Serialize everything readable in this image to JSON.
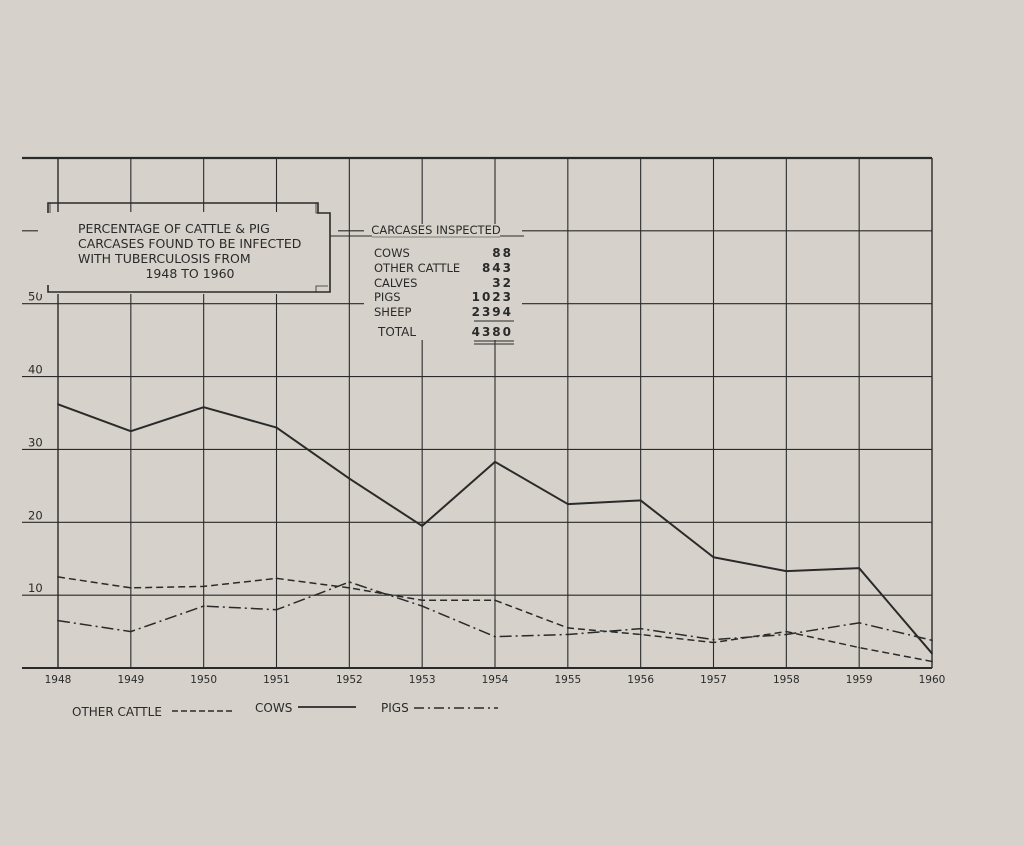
{
  "chart_data": {
    "type": "line",
    "title": "PERCENTAGE OF CATTLE & PIG CARCASES FOUND TO BE INFECTED WITH TUBERCULOSIS FROM 1948 TO 1960",
    "title_lines": [
      "PERCENTAGE OF CATTLE & PIG",
      "CARCASES FOUND TO BE INFECTED",
      "WITH TUBERCULOSIS FROM",
      "1948 TO 1960"
    ],
    "x": [
      1948,
      1949,
      1950,
      1951,
      1952,
      1953,
      1954,
      1955,
      1956,
      1957,
      1958,
      1959,
      1960
    ],
    "x_tick_labels": [
      "1948",
      "1949",
      "1950",
      "1951",
      "1952",
      "1953",
      "1954",
      "1955",
      "1956",
      "1957",
      "1958",
      "1959",
      "1960"
    ],
    "y_ticks": [
      10,
      20,
      30,
      40,
      50
    ],
    "y_tick_labels": [
      "10",
      "20",
      "30",
      "40",
      "50"
    ],
    "ylim": [
      0,
      70
    ],
    "xlim": [
      1948,
      1960
    ],
    "grid": true,
    "series": [
      {
        "name": "COWS",
        "style": "solid",
        "values": [
          36.2,
          32.5,
          35.8,
          33.0,
          26.0,
          19.5,
          28.3,
          22.5,
          23.0,
          15.2,
          13.3,
          13.7,
          2.0
        ]
      },
      {
        "name": "OTHER CATTLE",
        "style": "dashed",
        "values": [
          12.5,
          11.0,
          11.2,
          12.3,
          11.0,
          9.3,
          9.3,
          5.5,
          4.6,
          3.5,
          5.0,
          2.8,
          0.9
        ]
      },
      {
        "name": "PIGS",
        "style": "dashdot",
        "values": [
          6.5,
          5.0,
          8.5,
          8.0,
          11.8,
          8.5,
          4.3,
          4.6,
          5.4,
          3.9,
          4.6,
          6.2,
          3.8
        ]
      }
    ],
    "legend": {
      "placement": "bottom-left",
      "items": [
        {
          "label": "OTHER CATTLE",
          "style": "dashed"
        },
        {
          "label": "COWS",
          "style": "solid"
        },
        {
          "label": "PIGS",
          "style": "dashdot"
        }
      ]
    },
    "table": {
      "heading": "CARCASES INSPECTED",
      "rows": [
        {
          "label": "COWS",
          "value": "88"
        },
        {
          "label": "OTHER CATTLE",
          "value": "843"
        },
        {
          "label": "CALVES",
          "value": "32"
        },
        {
          "label": "PIGS",
          "value": "1023"
        },
        {
          "label": "SHEEP",
          "value": "2394"
        }
      ],
      "total_label": "TOTAL",
      "total_value": "4380"
    },
    "colors": {
      "ink": "#2a2a2a",
      "paper": "#d6d2cb"
    }
  }
}
